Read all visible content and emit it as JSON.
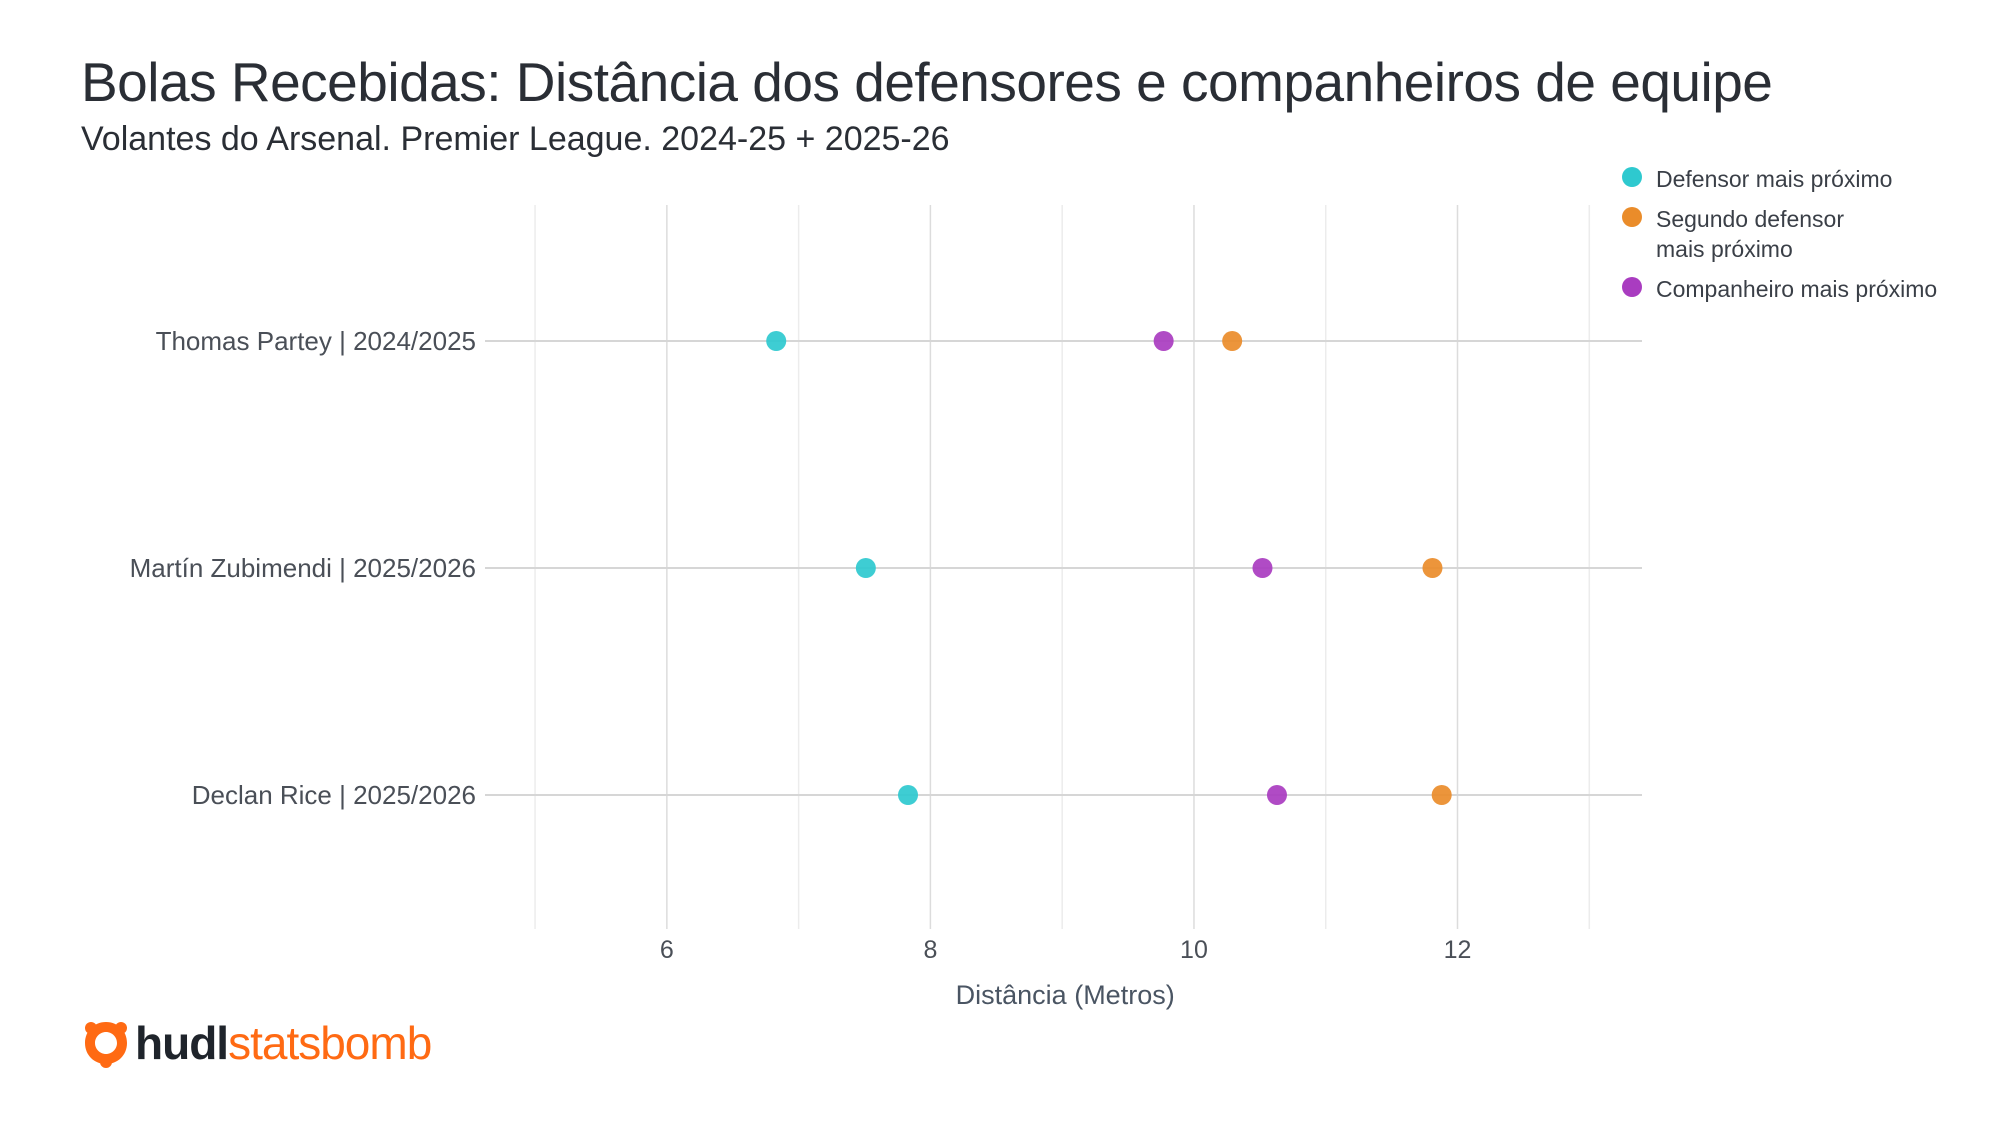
{
  "chart_data": {
    "type": "scatter",
    "title": "Bolas Recebidas: Distância dos defensores e companheiros de equipe",
    "subtitle": "Volantes do Arsenal. Premier League. 2024-25 + 2025-26",
    "xlabel": "Distância (Metros)",
    "ylabel": "",
    "xlim": [
      4.62,
      13.4
    ],
    "xticks": [
      6,
      8,
      10,
      12
    ],
    "xtick_labels": [
      "6",
      "8",
      "10",
      "12"
    ],
    "minor_grid": [
      5,
      7,
      9,
      11,
      13
    ],
    "grid": true,
    "legend_position": "top-right",
    "categories": [
      "Thomas Partey | 2024/2025",
      "Martín Zubimendi | 2025/2026",
      "Declan Rice | 2025/2026"
    ],
    "series": [
      {
        "name": "Defensor mais próximo",
        "color": "#2ec9cf",
        "values": [
          6.83,
          7.51,
          7.83
        ]
      },
      {
        "name": "Segundo defensor mais próximo",
        "legend_lines": [
          "Segundo defensor",
          "mais próximo"
        ],
        "color": "#ea8c2a",
        "values": [
          10.29,
          11.81,
          11.88
        ]
      },
      {
        "name": "Companheiro mais próximo",
        "color": "#a93cc0",
        "values": [
          9.77,
          10.52,
          10.63
        ]
      }
    ]
  },
  "logo": {
    "part1": "hudl",
    "part2": "statsbomb",
    "color": "#ff6a13"
  }
}
